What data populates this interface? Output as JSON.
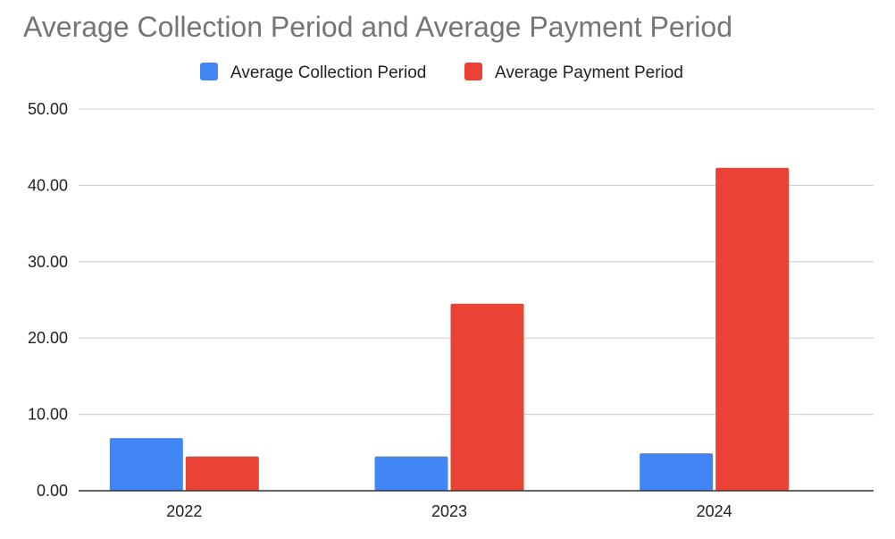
{
  "chart_data": {
    "type": "bar",
    "title": "Average Collection Period and Average Payment Period",
    "categories": [
      "2022",
      "2023",
      "2024"
    ],
    "series": [
      {
        "name": "Average Collection Period",
        "color": "#4285F4",
        "values": [
          6.9,
          4.5,
          4.9
        ]
      },
      {
        "name": "Average Payment Period",
        "color": "#EA4335",
        "values": [
          4.5,
          24.5,
          42.3
        ]
      }
    ],
    "y_ticks": [
      "0.00",
      "10.00",
      "20.00",
      "30.00",
      "40.00",
      "50.00"
    ],
    "ylim": [
      0,
      50
    ],
    "grid": true,
    "legend_position": "top"
  }
}
